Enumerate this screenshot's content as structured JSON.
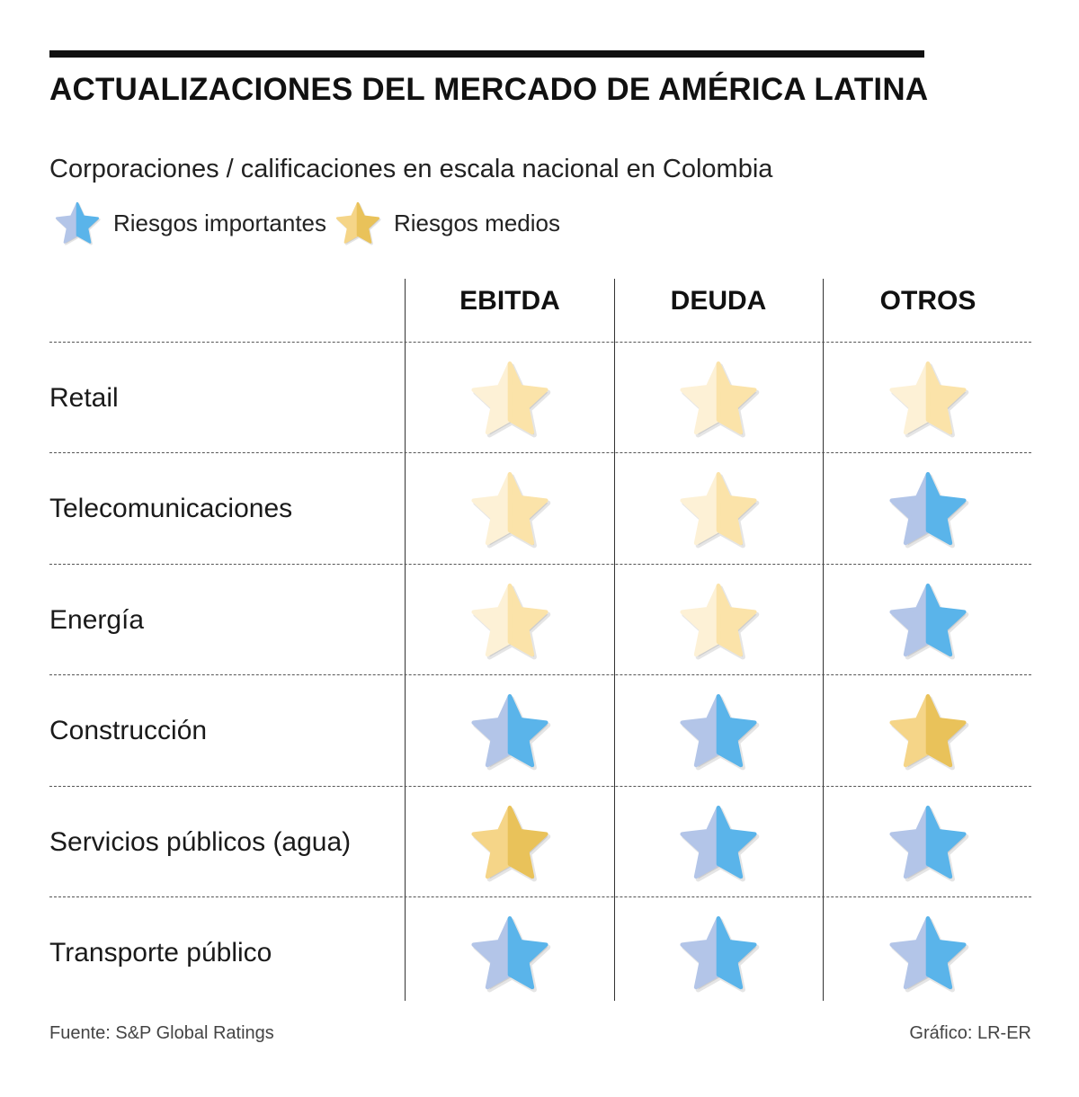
{
  "title": "ACTUALIZACIONES DEL MERCADO DE AMÉRICA LATINA",
  "subtitle": "Corporaciones / calificaciones en escala nacional en Colombia",
  "legend": {
    "major": "Riesgos importantes",
    "medium": "Riesgos medios"
  },
  "columns": [
    "EBITDA",
    "DEUDA",
    "OTROS"
  ],
  "rows": [
    {
      "label": "Retail",
      "ratings": [
        "low",
        "low",
        "low"
      ]
    },
    {
      "label": "Telecomunicaciones",
      "ratings": [
        "low",
        "low",
        "major"
      ]
    },
    {
      "label": "Energía",
      "ratings": [
        "low",
        "low",
        "major"
      ]
    },
    {
      "label": "Construcción",
      "ratings": [
        "major",
        "major",
        "medium"
      ]
    },
    {
      "label": "Servicios públicos (agua)",
      "ratings": [
        "medium",
        "major",
        "major"
      ]
    },
    {
      "label": "Transporte público",
      "ratings": [
        "major",
        "major",
        "major"
      ]
    }
  ],
  "footer": {
    "source": "Fuente: S&P Global Ratings",
    "credit": "Gráfico: LR-ER"
  },
  "colors": {
    "major_left": "#b3c5e8",
    "major_right": "#5ab4ea",
    "medium_left": "#f5d588",
    "medium_right": "#e9c25a",
    "low_left": "#fdf1d6",
    "low_right": "#fbe3a9"
  },
  "icons": {
    "major": "blue-star-icon",
    "medium": "gold-star-icon",
    "low": "pale-star-icon"
  }
}
